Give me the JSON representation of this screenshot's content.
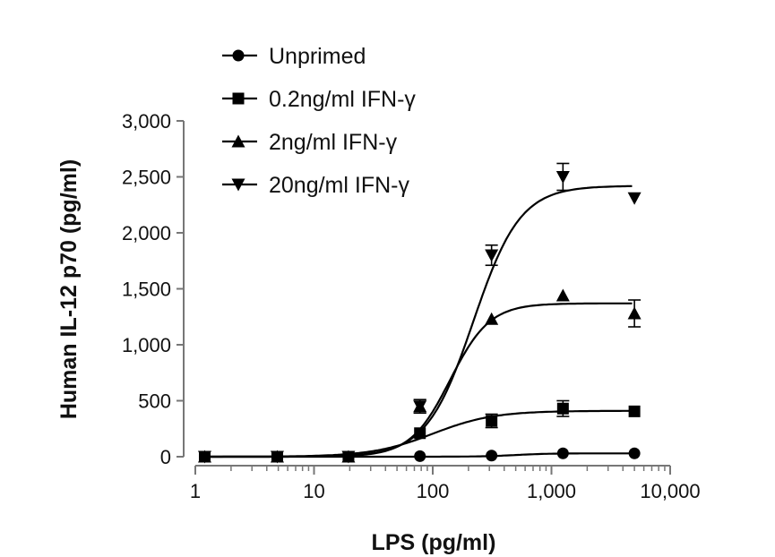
{
  "chart_data": {
    "type": "scatter",
    "title": "",
    "xlabel": "LPS (pg/ml)",
    "ylabel": "Human IL-12 p70 (pg/ml)",
    "x_scale": "log",
    "xlim": [
      1,
      10000
    ],
    "ylim": [
      0,
      3000
    ],
    "x_ticks": [
      1,
      10,
      100,
      1000,
      10000
    ],
    "x_tick_labels": [
      "1",
      "10",
      "100",
      "1,000",
      "10,000"
    ],
    "y_ticks": [
      0,
      500,
      1000,
      1500,
      2000,
      2500,
      3000
    ],
    "y_tick_labels": [
      "0",
      "500",
      "1,000",
      "1,500",
      "2,000",
      "2,500",
      "3,000"
    ],
    "legend_position": "top-left",
    "grid": false,
    "series": [
      {
        "name": "Unprimed",
        "marker": "circle",
        "points": [
          {
            "x": 1.2,
            "y": 0,
            "err": 0
          },
          {
            "x": 4.9,
            "y": 0,
            "err": 0
          },
          {
            "x": 19.5,
            "y": 0,
            "err": 0
          },
          {
            "x": 78,
            "y": 5,
            "err": 0
          },
          {
            "x": 313,
            "y": 10,
            "err": 0
          },
          {
            "x": 1250,
            "y": 30,
            "err": 0
          },
          {
            "x": 5000,
            "y": 30,
            "err": 0
          }
        ],
        "fit": {
          "bottom": 0,
          "top": 30,
          "ec50": 500,
          "hill": 3
        }
      },
      {
        "name": "0.2ng/ml IFN-γ",
        "marker": "square",
        "points": [
          {
            "x": 1.2,
            "y": 0,
            "err": 0
          },
          {
            "x": 4.9,
            "y": 0,
            "err": 0
          },
          {
            "x": 19.5,
            "y": 0,
            "err": 0
          },
          {
            "x": 78,
            "y": 210,
            "err": 0
          },
          {
            "x": 313,
            "y": 320,
            "err": 60
          },
          {
            "x": 1250,
            "y": 430,
            "err": 70
          },
          {
            "x": 5000,
            "y": 405,
            "err": 0
          }
        ],
        "fit": {
          "bottom": 0,
          "top": 410,
          "ec50": 100,
          "hill": 1.7
        }
      },
      {
        "name": "2ng/ml IFN-γ",
        "marker": "triangle-up",
        "points": [
          {
            "x": 1.2,
            "y": 0,
            "err": 0
          },
          {
            "x": 4.9,
            "y": 0,
            "err": 0
          },
          {
            "x": 19.5,
            "y": 0,
            "err": 0
          },
          {
            "x": 78,
            "y": 450,
            "err": 60
          },
          {
            "x": 313,
            "y": 1230,
            "err": 0
          },
          {
            "x": 1250,
            "y": 1440,
            "err": 0
          },
          {
            "x": 5000,
            "y": 1280,
            "err": 120
          }
        ],
        "fit": {
          "bottom": 0,
          "top": 1370,
          "ec50": 140,
          "hill": 2.6
        }
      },
      {
        "name": "20ng/ml IFN-γ",
        "marker": "triangle-down",
        "points": [
          {
            "x": 1.2,
            "y": 0,
            "err": 0
          },
          {
            "x": 4.9,
            "y": 0,
            "err": 0
          },
          {
            "x": 19.5,
            "y": 0,
            "err": 0
          },
          {
            "x": 78,
            "y": 450,
            "err": 60
          },
          {
            "x": 313,
            "y": 1800,
            "err": 90
          },
          {
            "x": 1250,
            "y": 2500,
            "err": 120
          },
          {
            "x": 5000,
            "y": 2310,
            "err": 0
          }
        ],
        "fit": {
          "bottom": 0,
          "top": 2420,
          "ec50": 220,
          "hill": 2.2
        }
      }
    ]
  }
}
